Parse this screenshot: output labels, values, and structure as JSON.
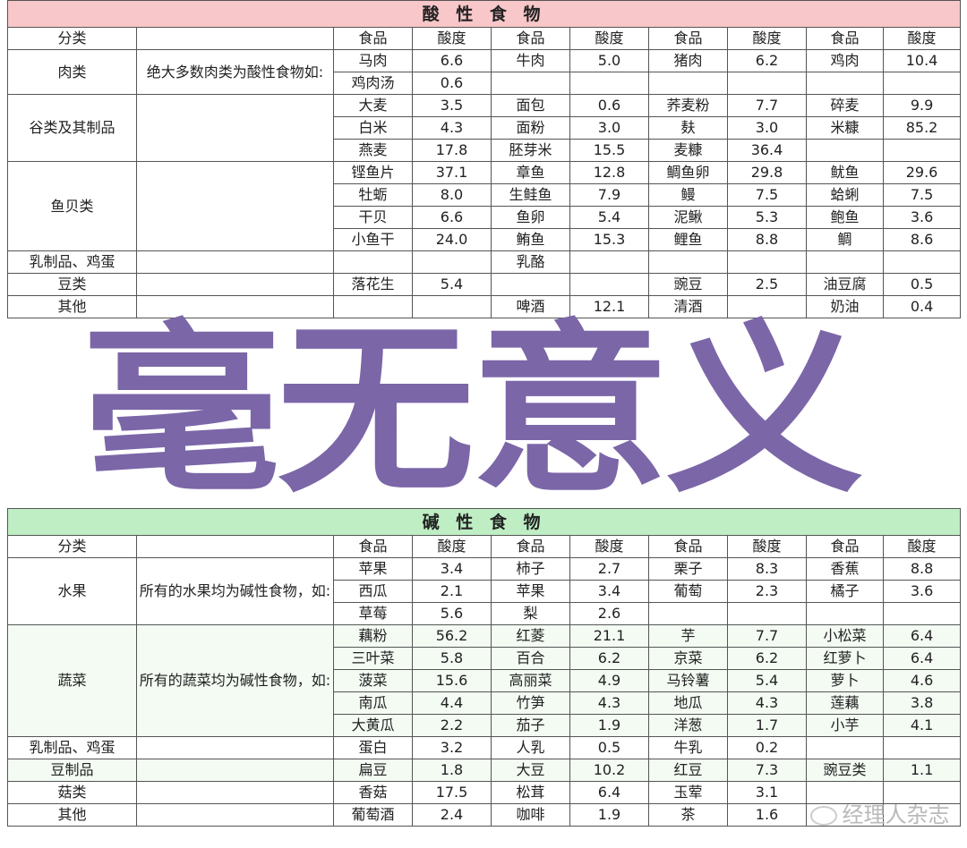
{
  "acid": {
    "title": "酸 性 食 物",
    "header": [
      "分类",
      "",
      "食品",
      "酸度",
      "食品",
      "酸度",
      "食品",
      "酸度",
      "食品",
      "酸度"
    ],
    "groups": [
      {
        "category": "肉类",
        "desc": "绝大多数肉类为酸性食物如:",
        "rows": [
          [
            "马肉",
            "6.6",
            "牛肉",
            "5.0",
            "猪肉",
            "6.2",
            "鸡肉",
            "10.4"
          ],
          [
            "鸡肉汤",
            "0.6",
            "",
            "",
            "",
            "",
            "",
            ""
          ]
        ]
      },
      {
        "category": "谷类及其制品",
        "desc": "",
        "rows": [
          [
            "大麦",
            "3.5",
            "面包",
            "0.6",
            "荞麦粉",
            "7.7",
            "碎麦",
            "9.9"
          ],
          [
            "白米",
            "4.3",
            "面粉",
            "3.0",
            "麸",
            "3.0",
            "米糠",
            "85.2"
          ],
          [
            "燕麦",
            "17.8",
            "胚芽米",
            "15.5",
            "麦糠",
            "36.4",
            "",
            ""
          ]
        ]
      },
      {
        "category": "鱼贝类",
        "desc": "",
        "rows": [
          [
            "铿鱼片",
            "37.1",
            "章鱼",
            "12.8",
            "鲷鱼卵",
            "29.8",
            "鱿鱼",
            "29.6"
          ],
          [
            "牡蛎",
            "8.0",
            "生鲑鱼",
            "7.9",
            "鳗",
            "7.5",
            "蛤蜊",
            "7.5"
          ],
          [
            "干贝",
            "6.6",
            "鱼卵",
            "5.4",
            "泥鳅",
            "5.3",
            "鲍鱼",
            "3.6"
          ],
          [
            "小鱼干",
            "24.0",
            "鲔鱼",
            "15.3",
            "鲤鱼",
            "8.8",
            "鲷",
            "8.6"
          ]
        ]
      },
      {
        "category": "乳制品、鸡蛋",
        "desc": "",
        "rows": [
          [
            "",
            "",
            "乳酪",
            "",
            "",
            "",
            "",
            ""
          ]
        ]
      },
      {
        "category": "豆类",
        "desc": "",
        "rows": [
          [
            "落花生",
            "5.4",
            "",
            "",
            "豌豆",
            "2.5",
            "油豆腐",
            "0.5"
          ]
        ]
      },
      {
        "category": "其他",
        "desc": "",
        "rows": [
          [
            "",
            "",
            "啤酒",
            "12.1",
            "清酒",
            "",
            "奶油",
            "0.4"
          ]
        ]
      }
    ]
  },
  "alkaline": {
    "title": "碱 性 食 物",
    "header": [
      "分类",
      "",
      "食品",
      "酸度",
      "食品",
      "酸度",
      "食品",
      "酸度",
      "食品",
      "酸度"
    ],
    "groups": [
      {
        "category": "水果",
        "desc": "所有的水果均为碱性食物，如:",
        "tint": false,
        "rows": [
          [
            "苹果",
            "3.4",
            "柿子",
            "2.7",
            "栗子",
            "8.3",
            "香蕉",
            "8.8"
          ],
          [
            "西瓜",
            "2.1",
            "苹果",
            "3.4",
            "葡萄",
            "2.3",
            "橘子",
            "3.6"
          ],
          [
            "草莓",
            "5.6",
            "梨",
            "2.6",
            "",
            "",
            "",
            ""
          ]
        ]
      },
      {
        "category": "蔬菜",
        "desc": "所有的蔬菜均为碱性食物，如:",
        "tint": true,
        "rows": [
          [
            "藕粉",
            "56.2",
            "红菱",
            "21.1",
            "芋",
            "7.7",
            "小松菜",
            "6.4"
          ],
          [
            "三叶菜",
            "5.8",
            "百合",
            "6.2",
            "京菜",
            "6.2",
            "红萝卜",
            "6.4"
          ],
          [
            "菠菜",
            "15.6",
            "高丽菜",
            "4.9",
            "马铃薯",
            "5.4",
            "萝卜",
            "4.6"
          ],
          [
            "南瓜",
            "4.4",
            "竹笋",
            "4.3",
            "地瓜",
            "4.3",
            "莲藕",
            "3.8"
          ],
          [
            "大黄瓜",
            "2.2",
            "茄子",
            "1.9",
            "洋葱",
            "1.7",
            "小芋",
            "4.1"
          ]
        ]
      },
      {
        "category": "乳制品、鸡蛋",
        "desc": "",
        "tint": false,
        "rows": [
          [
            "蛋白",
            "3.2",
            "人乳",
            "0.5",
            "牛乳",
            "0.2",
            "",
            ""
          ]
        ]
      },
      {
        "category": "豆制品",
        "desc": "",
        "tint": true,
        "rows": [
          [
            "扁豆",
            "1.8",
            "大豆",
            "10.2",
            "红豆",
            "7.3",
            "豌豆类",
            "1.1"
          ]
        ]
      },
      {
        "category": "菇类",
        "desc": "",
        "tint": false,
        "rows": [
          [
            "香菇",
            "17.5",
            "松茸",
            "6.4",
            "玉荤",
            "3.1",
            "",
            ""
          ]
        ]
      },
      {
        "category": "其他",
        "desc": "",
        "tint": false,
        "rows": [
          [
            "葡萄酒",
            "2.4",
            "咖啡",
            "1.9",
            "茶",
            "1.6",
            "",
            ""
          ]
        ]
      }
    ]
  },
  "watermark": "毫无意义",
  "source_logo": "经理人杂志",
  "colors": {
    "acid_header": "#f8c7c9",
    "alkaline_header": "#bfeec5",
    "watermark": "#7b66a8"
  }
}
